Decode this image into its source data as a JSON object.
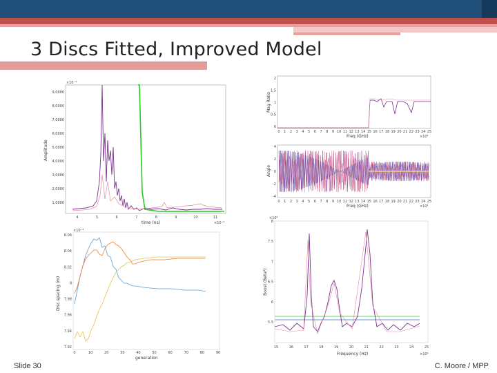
{
  "slide": {
    "title": "3 Discs Fitted, Improved Model",
    "footer_left": "Slide 30",
    "footer_right": "C. Moore / MPP"
  },
  "colors": {
    "top_bar": "#1f4e79",
    "accent_band": "#c0504d",
    "series_green": "#22cc22",
    "series_purple": "#7a2e8e",
    "series_blue": "#5b9bd5",
    "series_orange": "#ed7d31",
    "series_yellow": "#e6c04a"
  },
  "charts": {
    "amplitude_time": {
      "type": "line",
      "exponent_label": "×10⁻³",
      "x_exponent": "×10⁻³",
      "xlabel": "time (ns)",
      "ylabel": "Amplitude",
      "x_ticks": [
        "4",
        "5",
        "6",
        "7",
        "8",
        "9",
        "10",
        "11"
      ],
      "y_ticks": [
        "1,0000",
        "2,0000",
        "3,0000",
        "4,0000",
        "5,0000",
        "6,0000",
        "7,0000",
        "8,0000",
        "9,0000"
      ]
    },
    "mag_ratio": {
      "type": "line",
      "xlabel": "Freq (GHz)",
      "ylabel": "Mag Ratio",
      "x_exponent": "×10⁴",
      "x_ticks": [
        "0",
        "1",
        "2",
        "3",
        "4",
        "5",
        "6",
        "7",
        "8",
        "9",
        "10",
        "11",
        "12",
        "13",
        "14",
        "15",
        "16",
        "17",
        "18",
        "19",
        "20",
        "21",
        "22",
        "23",
        "24",
        "25"
      ],
      "y_ticks": [
        "0",
        "0.5",
        "1",
        "1.5",
        "2"
      ]
    },
    "angle": {
      "type": "line",
      "xlabel": "Freq (GHz)",
      "ylabel": "Angle",
      "x_exponent": "×10⁴",
      "x_ticks": [
        "0",
        "1",
        "2",
        "3",
        "4",
        "5",
        "6",
        "7",
        "8",
        "9",
        "10",
        "11",
        "12",
        "13",
        "14",
        "15",
        "16",
        "17",
        "18",
        "19",
        "20",
        "21",
        "22",
        "23",
        "24",
        "25"
      ],
      "y_ticks": [
        "-4",
        "-2",
        "0",
        "2",
        "4"
      ]
    },
    "disc_spacing": {
      "type": "line",
      "xlabel": "generation",
      "ylabel": "Disc spacing (m)",
      "x_ticks": [
        "0",
        "10",
        "20",
        "30",
        "40",
        "50",
        "60",
        "70",
        "80",
        "90"
      ],
      "y_ticks": [
        "7.92",
        "7.94",
        "7.96",
        "7.98",
        "8",
        "8.02",
        "8.04",
        "8.06"
      ],
      "y_exponent": "×10⁻³"
    },
    "boost": {
      "type": "line",
      "xlabel": "Frequency (Hz)",
      "ylabel": "Boost (Beta²)",
      "y_exponent": "×10⁴",
      "x_exponent": "×10⁹",
      "x_ticks": [
        "15",
        "16",
        "17",
        "18",
        "19",
        "20",
        "21",
        "22",
        "23",
        "24",
        "25"
      ],
      "y_ticks": [
        "5.5",
        "6",
        "6.5",
        "7",
        "7.5",
        "8"
      ]
    }
  }
}
